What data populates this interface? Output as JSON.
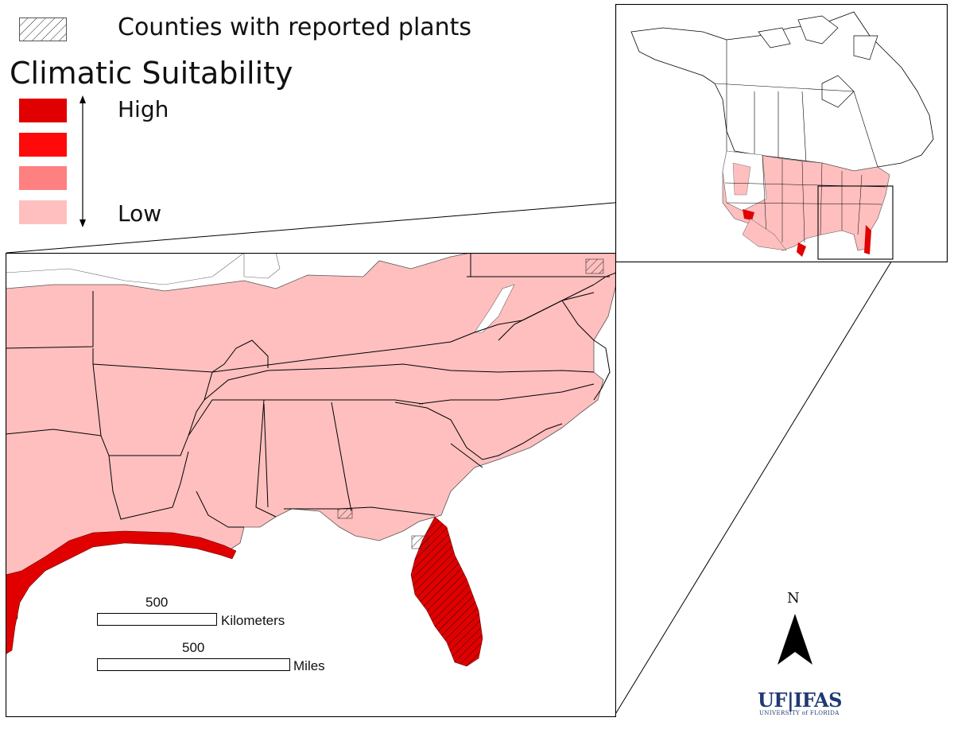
{
  "legend": {
    "hatch_label": "Counties with reported plants",
    "title": "Climatic Suitability",
    "high_label": "High",
    "low_label": "Low",
    "levels": [
      {
        "name": "highest",
        "color": "#e00000"
      },
      {
        "name": "high",
        "color": "#ff0a0a"
      },
      {
        "name": "medium",
        "color": "#ff8080"
      },
      {
        "name": "low",
        "color": "#ffbfbf"
      }
    ]
  },
  "scale": {
    "km_value": "500",
    "km_unit": "Kilometers",
    "mi_value": "500",
    "mi_unit": "Miles"
  },
  "north": {
    "label": "N"
  },
  "logo": {
    "main": "UF|IFAS",
    "sub": "UNIVERSITY of FLORIDA"
  },
  "colors": {
    "low_fill": "#ffbfbf",
    "high_fill": "#e00000",
    "water": "#ffffff",
    "border": "#000000",
    "logo": "#1f3a72"
  }
}
